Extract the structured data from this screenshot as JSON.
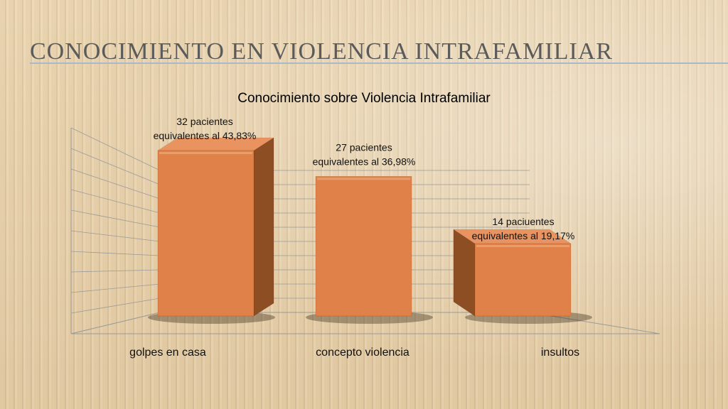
{
  "slide": {
    "title": "CONOCIMIENTO EN VIOLENCIA INTRAFAMILIAR"
  },
  "colors": {
    "bar_front": "#df8148",
    "bar_side": "#8d4e24",
    "bar_top": "#e99360",
    "axis_lines": "#9a9a9a"
  },
  "chart_data": {
    "type": "bar",
    "title": "Conocimiento sobre Violencia Intrafamiliar",
    "categories": [
      "golpes en casa",
      "concepto violencia",
      "insultos"
    ],
    "values": [
      32,
      27,
      14
    ],
    "data_labels": [
      [
        "32 pacientes",
        "equivalentes al 43,83%"
      ],
      [
        "27 pacientes",
        "equivalentes al 36,98%"
      ],
      [
        "14 paciuentes",
        "equivalentes al 19,17%"
      ]
    ],
    "xlabel": "",
    "ylabel": "",
    "ylim": [
      0,
      35
    ],
    "grid": true,
    "style": "3d"
  }
}
